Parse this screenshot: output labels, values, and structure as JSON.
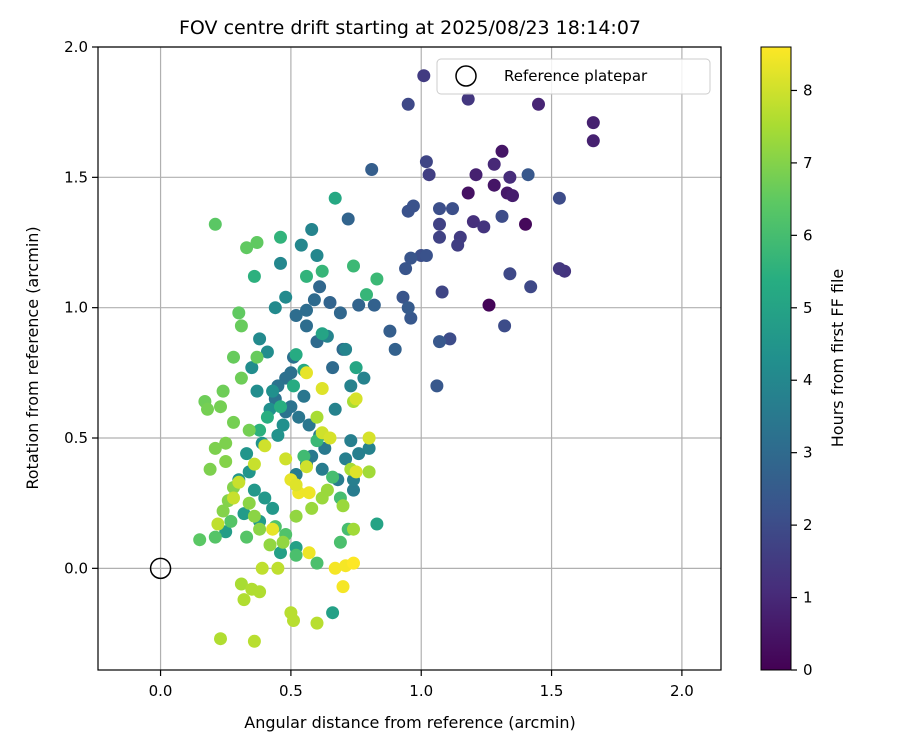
{
  "chart_data": {
    "type": "scatter",
    "title": "FOV centre drift starting at 2025/08/23 18:14:07",
    "xlabel": "Angular distance from reference (arcmin)",
    "ylabel": "Rotation from reference (arcmin)",
    "xlim": [
      -0.24,
      2.15
    ],
    "ylim": [
      -0.39,
      2.0
    ],
    "xticks": [
      "0.0",
      "0.5",
      "1.0",
      "1.5",
      "2.0"
    ],
    "xtick_values": [
      0.0,
      0.5,
      1.0,
      1.5,
      2.0
    ],
    "yticks": [
      "0.0",
      "0.5",
      "1.0",
      "1.5",
      "2.0"
    ],
    "ytick_values": [
      0.0,
      0.5,
      1.0,
      1.5,
      2.0
    ],
    "grid": true,
    "colormap": "viridis",
    "colorbar": {
      "label": "Hours from first FF file",
      "range": [
        0,
        8.6
      ],
      "ticks": [
        "0",
        "1",
        "2",
        "3",
        "4",
        "5",
        "6",
        "7",
        "8"
      ],
      "tick_values": [
        0,
        1,
        2,
        3,
        4,
        5,
        6,
        7,
        8
      ]
    },
    "legend": {
      "position": "top-right",
      "entries": [
        "Reference platepar"
      ]
    },
    "reference_point": {
      "x": 0.0,
      "y": 0.0
    },
    "points_xyh": [
      [
        1.26,
        1.01,
        0.1
      ],
      [
        1.4,
        1.32,
        0.2
      ],
      [
        1.18,
        1.44,
        0.4
      ],
      [
        1.28,
        1.47,
        0.5
      ],
      [
        1.31,
        1.6,
        0.5
      ],
      [
        1.33,
        1.44,
        0.6
      ],
      [
        1.35,
        1.43,
        0.7
      ],
      [
        1.21,
        1.51,
        0.8
      ],
      [
        1.66,
        1.71,
        0.8
      ],
      [
        1.66,
        1.64,
        0.8
      ],
      [
        1.45,
        1.78,
        0.9
      ],
      [
        1.28,
        1.55,
        1.0
      ],
      [
        1.34,
        1.5,
        1.1
      ],
      [
        1.2,
        1.33,
        1.2
      ],
      [
        1.24,
        1.31,
        1.3
      ],
      [
        1.55,
        1.14,
        1.3
      ],
      [
        1.53,
        1.15,
        1.4
      ],
      [
        1.18,
        1.8,
        1.4
      ],
      [
        1.01,
        1.89,
        1.5
      ],
      [
        1.15,
        1.27,
        1.5
      ],
      [
        1.14,
        1.24,
        1.6
      ],
      [
        1.03,
        1.51,
        1.6
      ],
      [
        1.07,
        1.32,
        1.7
      ],
      [
        1.07,
        1.27,
        1.7
      ],
      [
        1.02,
        1.56,
        1.8
      ],
      [
        1.08,
        1.06,
        1.8
      ],
      [
        0.95,
        1.78,
        1.9
      ],
      [
        1.34,
        1.13,
        1.9
      ],
      [
        1.42,
        1.08,
        1.9
      ],
      [
        1.31,
        1.35,
        2.0
      ],
      [
        1.32,
        0.93,
        2.0
      ],
      [
        1.11,
        0.88,
        2.0
      ],
      [
        1.53,
        1.42,
        2.0
      ],
      [
        1.12,
        1.38,
        2.1
      ],
      [
        1.07,
        1.38,
        2.1
      ],
      [
        1.0,
        1.2,
        2.1
      ],
      [
        1.02,
        1.2,
        2.2
      ],
      [
        0.97,
        1.39,
        2.2
      ],
      [
        0.95,
        1.37,
        2.2
      ],
      [
        0.94,
        1.15,
        2.3
      ],
      [
        0.96,
        1.19,
        2.3
      ],
      [
        0.93,
        1.04,
        2.3
      ],
      [
        0.96,
        0.96,
        2.4
      ],
      [
        1.07,
        0.87,
        2.4
      ],
      [
        1.06,
        0.7,
        2.4
      ],
      [
        1.41,
        1.51,
        2.4
      ],
      [
        0.95,
        1.0,
        2.5
      ],
      [
        0.81,
        1.53,
        2.6
      ],
      [
        0.88,
        0.91,
        2.6
      ],
      [
        0.9,
        0.84,
        2.7
      ],
      [
        0.82,
        1.01,
        2.7
      ],
      [
        0.76,
        1.01,
        2.8
      ],
      [
        0.72,
        1.34,
        2.8
      ],
      [
        0.65,
        1.02,
        2.8
      ],
      [
        0.69,
        0.98,
        2.9
      ],
      [
        0.61,
        1.08,
        2.9
      ],
      [
        0.59,
        1.03,
        3.0
      ],
      [
        0.7,
        0.84,
        3.0
      ],
      [
        0.66,
        0.77,
        3.0
      ],
      [
        0.6,
        0.87,
        3.0
      ],
      [
        0.56,
        0.99,
        3.1
      ],
      [
        0.52,
        0.97,
        3.1
      ],
      [
        0.56,
        0.93,
        3.1
      ],
      [
        0.51,
        0.81,
        3.2
      ],
      [
        0.5,
        0.75,
        3.2
      ],
      [
        0.48,
        0.73,
        3.2
      ],
      [
        0.45,
        0.7,
        3.3
      ],
      [
        0.44,
        0.65,
        3.3
      ],
      [
        0.48,
        0.6,
        3.3
      ],
      [
        0.5,
        0.62,
        3.3
      ],
      [
        0.55,
        0.66,
        3.4
      ],
      [
        0.53,
        0.58,
        3.4
      ],
      [
        0.57,
        0.55,
        3.4
      ],
      [
        0.61,
        0.51,
        3.5
      ],
      [
        0.63,
        0.46,
        3.5
      ],
      [
        0.58,
        0.43,
        3.5
      ],
      [
        0.56,
        0.4,
        3.5
      ],
      [
        0.52,
        0.36,
        3.6
      ],
      [
        0.62,
        0.38,
        3.6
      ],
      [
        0.68,
        0.34,
        3.6
      ],
      [
        0.74,
        0.3,
        3.6
      ],
      [
        0.74,
        0.34,
        3.7
      ],
      [
        0.71,
        0.42,
        3.7
      ],
      [
        0.76,
        0.44,
        3.7
      ],
      [
        0.73,
        0.49,
        3.7
      ],
      [
        0.8,
        0.46,
        3.8
      ],
      [
        0.67,
        0.61,
        3.8
      ],
      [
        0.73,
        0.7,
        3.8
      ],
      [
        0.78,
        0.73,
        3.8
      ],
      [
        0.71,
        0.84,
        3.9
      ],
      [
        0.64,
        0.89,
        3.9
      ],
      [
        0.58,
        1.3,
        3.9
      ],
      [
        0.6,
        1.2,
        4.0
      ],
      [
        0.54,
        1.24,
        4.0
      ],
      [
        0.46,
        1.17,
        4.0
      ],
      [
        0.48,
        1.04,
        4.1
      ],
      [
        0.44,
        1.0,
        4.1
      ],
      [
        0.38,
        0.88,
        4.1
      ],
      [
        0.41,
        0.83,
        4.2
      ],
      [
        0.35,
        0.77,
        4.2
      ],
      [
        0.37,
        0.68,
        4.2
      ],
      [
        0.43,
        0.68,
        4.3
      ],
      [
        0.42,
        0.61,
        4.3
      ],
      [
        0.47,
        0.55,
        4.3
      ],
      [
        0.45,
        0.51,
        4.4
      ],
      [
        0.39,
        0.48,
        4.4
      ],
      [
        0.33,
        0.44,
        4.5
      ],
      [
        0.34,
        0.37,
        4.5
      ],
      [
        0.3,
        0.34,
        4.5
      ],
      [
        0.36,
        0.3,
        4.6
      ],
      [
        0.4,
        0.27,
        4.6
      ],
      [
        0.43,
        0.23,
        4.6
      ],
      [
        0.38,
        0.18,
        4.7
      ],
      [
        0.32,
        0.21,
        4.7
      ],
      [
        0.25,
        0.14,
        4.8
      ],
      [
        0.46,
        0.06,
        4.9
      ],
      [
        0.52,
        0.08,
        4.9
      ],
      [
        0.66,
        -0.17,
        4.9
      ],
      [
        0.83,
        0.17,
        5.0
      ],
      [
        0.62,
        0.9,
        5.0
      ],
      [
        0.75,
        0.77,
        5.1
      ],
      [
        0.67,
        1.42,
        5.2
      ],
      [
        0.55,
        0.76,
        5.2
      ],
      [
        0.52,
        0.82,
        5.3
      ],
      [
        0.51,
        0.7,
        5.3
      ],
      [
        0.46,
        0.62,
        5.4
      ],
      [
        0.41,
        0.58,
        5.4
      ],
      [
        0.38,
        0.53,
        5.5
      ],
      [
        0.36,
        1.12,
        5.5
      ],
      [
        0.46,
        1.27,
        5.6
      ],
      [
        0.56,
        1.12,
        5.6
      ],
      [
        0.62,
        1.14,
        5.7
      ],
      [
        0.79,
        1.05,
        5.7
      ],
      [
        0.74,
        1.16,
        5.8
      ],
      [
        0.83,
        1.11,
        5.8
      ],
      [
        0.6,
        0.49,
        5.8
      ],
      [
        0.55,
        0.43,
        5.9
      ],
      [
        0.66,
        0.35,
        6.0
      ],
      [
        0.69,
        0.27,
        6.0
      ],
      [
        0.72,
        0.15,
        6.0
      ],
      [
        0.69,
        0.1,
        6.1
      ],
      [
        0.6,
        0.02,
        6.1
      ],
      [
        0.52,
        0.05,
        6.1
      ],
      [
        0.48,
        0.13,
        6.2
      ],
      [
        0.44,
        0.16,
        6.2
      ],
      [
        0.33,
        0.12,
        6.3
      ],
      [
        0.27,
        0.18,
        6.3
      ],
      [
        0.21,
        0.12,
        6.3
      ],
      [
        0.15,
        0.11,
        6.4
      ],
      [
        0.21,
        1.32,
        6.4
      ],
      [
        0.37,
        1.25,
        6.5
      ],
      [
        0.33,
        1.23,
        6.5
      ],
      [
        0.3,
        0.98,
        6.5
      ],
      [
        0.31,
        0.93,
        6.6
      ],
      [
        0.37,
        0.81,
        6.6
      ],
      [
        0.28,
        0.81,
        6.6
      ],
      [
        0.31,
        0.73,
        6.7
      ],
      [
        0.24,
        0.68,
        6.7
      ],
      [
        0.17,
        0.64,
        6.7
      ],
      [
        0.18,
        0.61,
        6.8
      ],
      [
        0.23,
        0.62,
        6.8
      ],
      [
        0.28,
        0.56,
        6.8
      ],
      [
        0.34,
        0.53,
        6.8
      ],
      [
        0.25,
        0.48,
        6.9
      ],
      [
        0.21,
        0.46,
        6.9
      ],
      [
        0.19,
        0.38,
        6.9
      ],
      [
        0.25,
        0.41,
        7.0
      ],
      [
        0.28,
        0.31,
        7.0
      ],
      [
        0.26,
        0.26,
        7.0
      ],
      [
        0.24,
        0.22,
        7.0
      ],
      [
        0.34,
        0.25,
        7.1
      ],
      [
        0.36,
        0.2,
        7.1
      ],
      [
        0.38,
        0.15,
        7.1
      ],
      [
        0.42,
        0.09,
        7.2
      ],
      [
        0.47,
        0.1,
        7.2
      ],
      [
        0.52,
        0.2,
        7.2
      ],
      [
        0.58,
        0.23,
        7.3
      ],
      [
        0.62,
        0.27,
        7.3
      ],
      [
        0.64,
        0.3,
        7.3
      ],
      [
        0.7,
        0.24,
        7.3
      ],
      [
        0.74,
        0.15,
        7.4
      ],
      [
        0.8,
        0.37,
        7.4
      ],
      [
        0.73,
        0.38,
        7.5
      ],
      [
        0.74,
        0.64,
        7.5
      ],
      [
        0.6,
        0.58,
        7.5
      ],
      [
        0.31,
        -0.06,
        7.5
      ],
      [
        0.35,
        -0.08,
        7.6
      ],
      [
        0.38,
        -0.09,
        7.6
      ],
      [
        0.32,
        -0.12,
        7.6
      ],
      [
        0.5,
        -0.17,
        7.7
      ],
      [
        0.51,
        -0.2,
        7.7
      ],
      [
        0.6,
        -0.21,
        7.7
      ],
      [
        0.36,
        -0.28,
        7.7
      ],
      [
        0.39,
        0.0,
        7.8
      ],
      [
        0.45,
        0.0,
        7.8
      ],
      [
        0.22,
        0.17,
        7.8
      ],
      [
        0.28,
        0.27,
        7.9
      ],
      [
        0.3,
        0.33,
        7.9
      ],
      [
        0.36,
        0.4,
        7.9
      ],
      [
        0.4,
        0.47,
        8.0
      ],
      [
        0.48,
        0.42,
        8.0
      ],
      [
        0.56,
        0.39,
        8.0
      ],
      [
        0.62,
        0.52,
        8.0
      ],
      [
        0.65,
        0.5,
        8.1
      ],
      [
        0.75,
        0.65,
        8.1
      ],
      [
        0.8,
        0.5,
        8.1
      ],
      [
        0.75,
        0.37,
        8.2
      ],
      [
        0.62,
        0.69,
        8.2
      ],
      [
        0.56,
        0.75,
        8.3
      ],
      [
        0.43,
        0.15,
        8.3
      ],
      [
        0.5,
        0.34,
        8.3
      ],
      [
        0.53,
        0.29,
        8.4
      ],
      [
        0.57,
        0.29,
        8.4
      ],
      [
        0.57,
        0.06,
        8.4
      ],
      [
        0.67,
        0.0,
        8.5
      ],
      [
        0.7,
        -0.07,
        8.5
      ],
      [
        0.71,
        0.01,
        8.5
      ],
      [
        0.74,
        0.02,
        8.6
      ],
      [
        0.23,
        -0.27,
        7.6
      ],
      [
        0.52,
        0.32,
        8.2
      ]
    ]
  }
}
